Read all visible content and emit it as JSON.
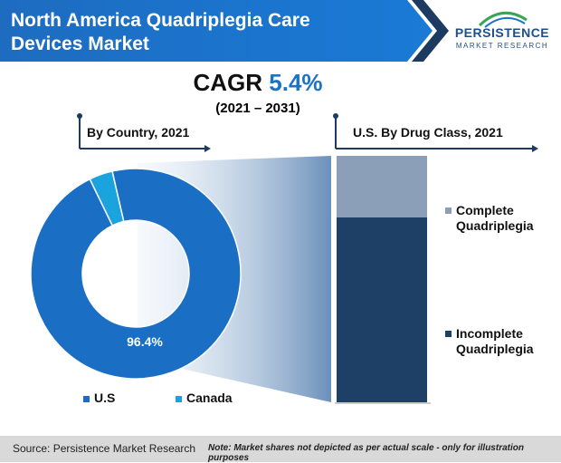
{
  "header": {
    "title_line1": "North America Quadriplegia Care",
    "title_line2": "Devices Market"
  },
  "logo": {
    "word": "PERSISTENCE",
    "sub": "MARKET RESEARCH"
  },
  "cagr": {
    "label": "CAGR",
    "value": "5.4%",
    "period": "(2021 – 2031)"
  },
  "colors": {
    "banner": "#1a73c9",
    "us": "#1a6fc4",
    "canada": "#1aa3dc",
    "complete": "#8c9fb8",
    "incomplete": "#1f4066",
    "accent": "#1d3a61"
  },
  "chart_data": [
    {
      "type": "pie",
      "title": "By Country, 2021",
      "categories": [
        "U.S",
        "Canada"
      ],
      "values": [
        96.4,
        3.6
      ],
      "data_labels": [
        "96.4%",
        ""
      ],
      "legend": "bottom"
    },
    {
      "type": "bar",
      "title": "U.S. By Drug Class, 2021",
      "categories": [
        "Complete Quadriplegia",
        "Incomplete Quadriplegia"
      ],
      "values": [
        25,
        75
      ],
      "stacked": true,
      "legend": "right"
    }
  ],
  "footer": {
    "source": "Source: Persistence Market Research",
    "note": "Note: Market shares not depicted as per actual scale - only for illustration purposes"
  }
}
